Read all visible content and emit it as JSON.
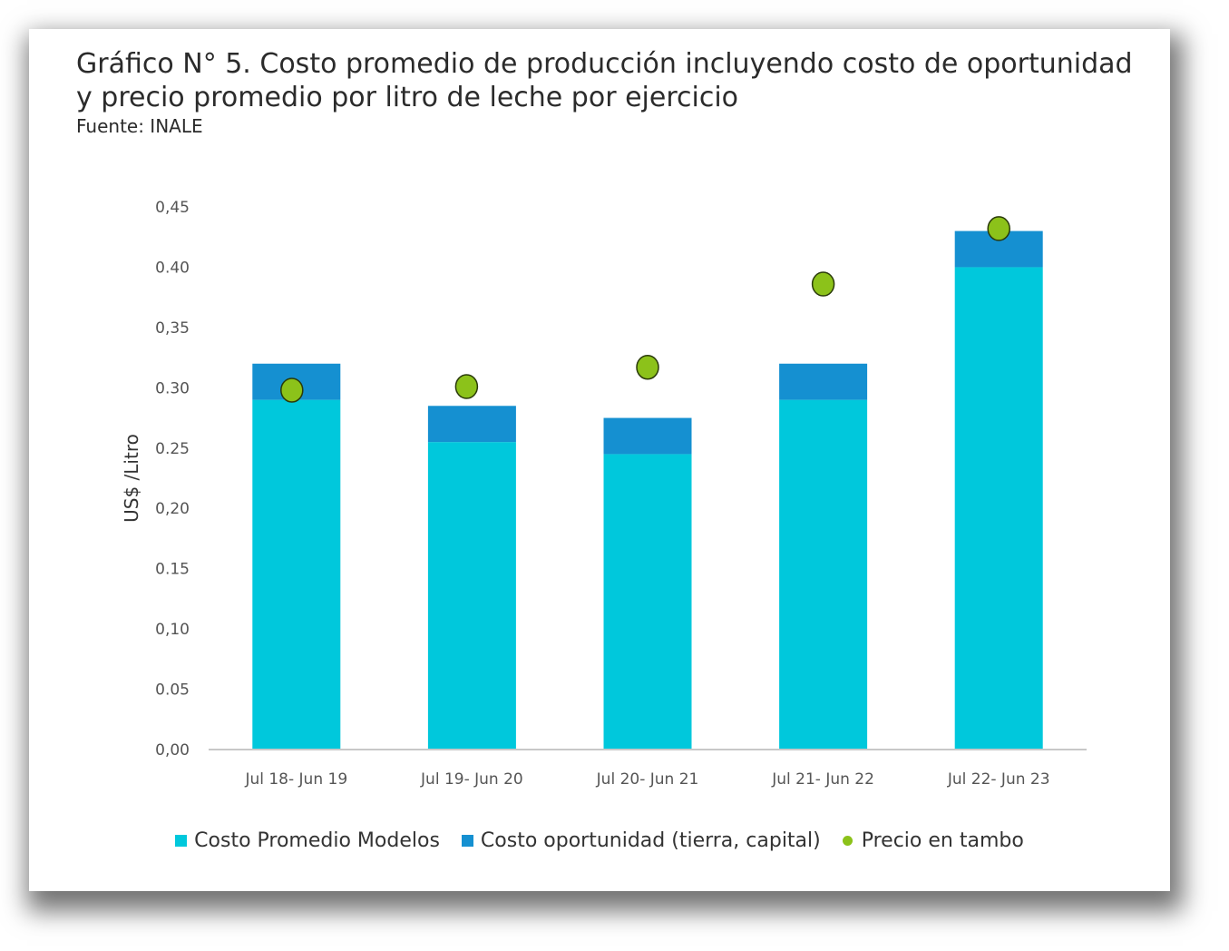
{
  "figure": {
    "title": "Gráfico N° 5.  Costo promedio de producción incluyendo costo de oportunidad y precio promedio por litro de leche por ejercicio",
    "source": "Fuente: INALE"
  },
  "colors": {
    "base": "#00c8dc",
    "opportunity": "#1590d1",
    "price": "#8cc21a",
    "axis": "#c8c8c8"
  },
  "chart_data": {
    "type": "bar",
    "stacked": true,
    "categories": [
      "Jul 18- Jun 19",
      "Jul 19- Jun 20",
      "Jul 20- Jun 21",
      "Jul 21- Jun 22",
      "Jul 22- Jun 23"
    ],
    "series": [
      {
        "name": "Costo Promedio Modelos",
        "type": "bar",
        "values": [
          0.29,
          0.255,
          0.245,
          0.29,
          0.4
        ]
      },
      {
        "name": "Costo oportunidad (tierra, capital)",
        "type": "bar",
        "values": [
          0.03,
          0.03,
          0.03,
          0.03,
          0.03
        ]
      },
      {
        "name": "Precio en tambo",
        "type": "scatter",
        "values": [
          0.298,
          0.301,
          0.317,
          0.386,
          0.432
        ]
      }
    ],
    "ylabel": "US$ /Litro",
    "ylim": [
      0,
      0.45
    ],
    "yticks": [
      "0,00",
      "0.05",
      "0,10",
      "0.15",
      "0,20",
      "0.25",
      "0.30",
      "0,35",
      "0.40",
      "0,45"
    ],
    "grid": false,
    "legend_position": "bottom"
  }
}
